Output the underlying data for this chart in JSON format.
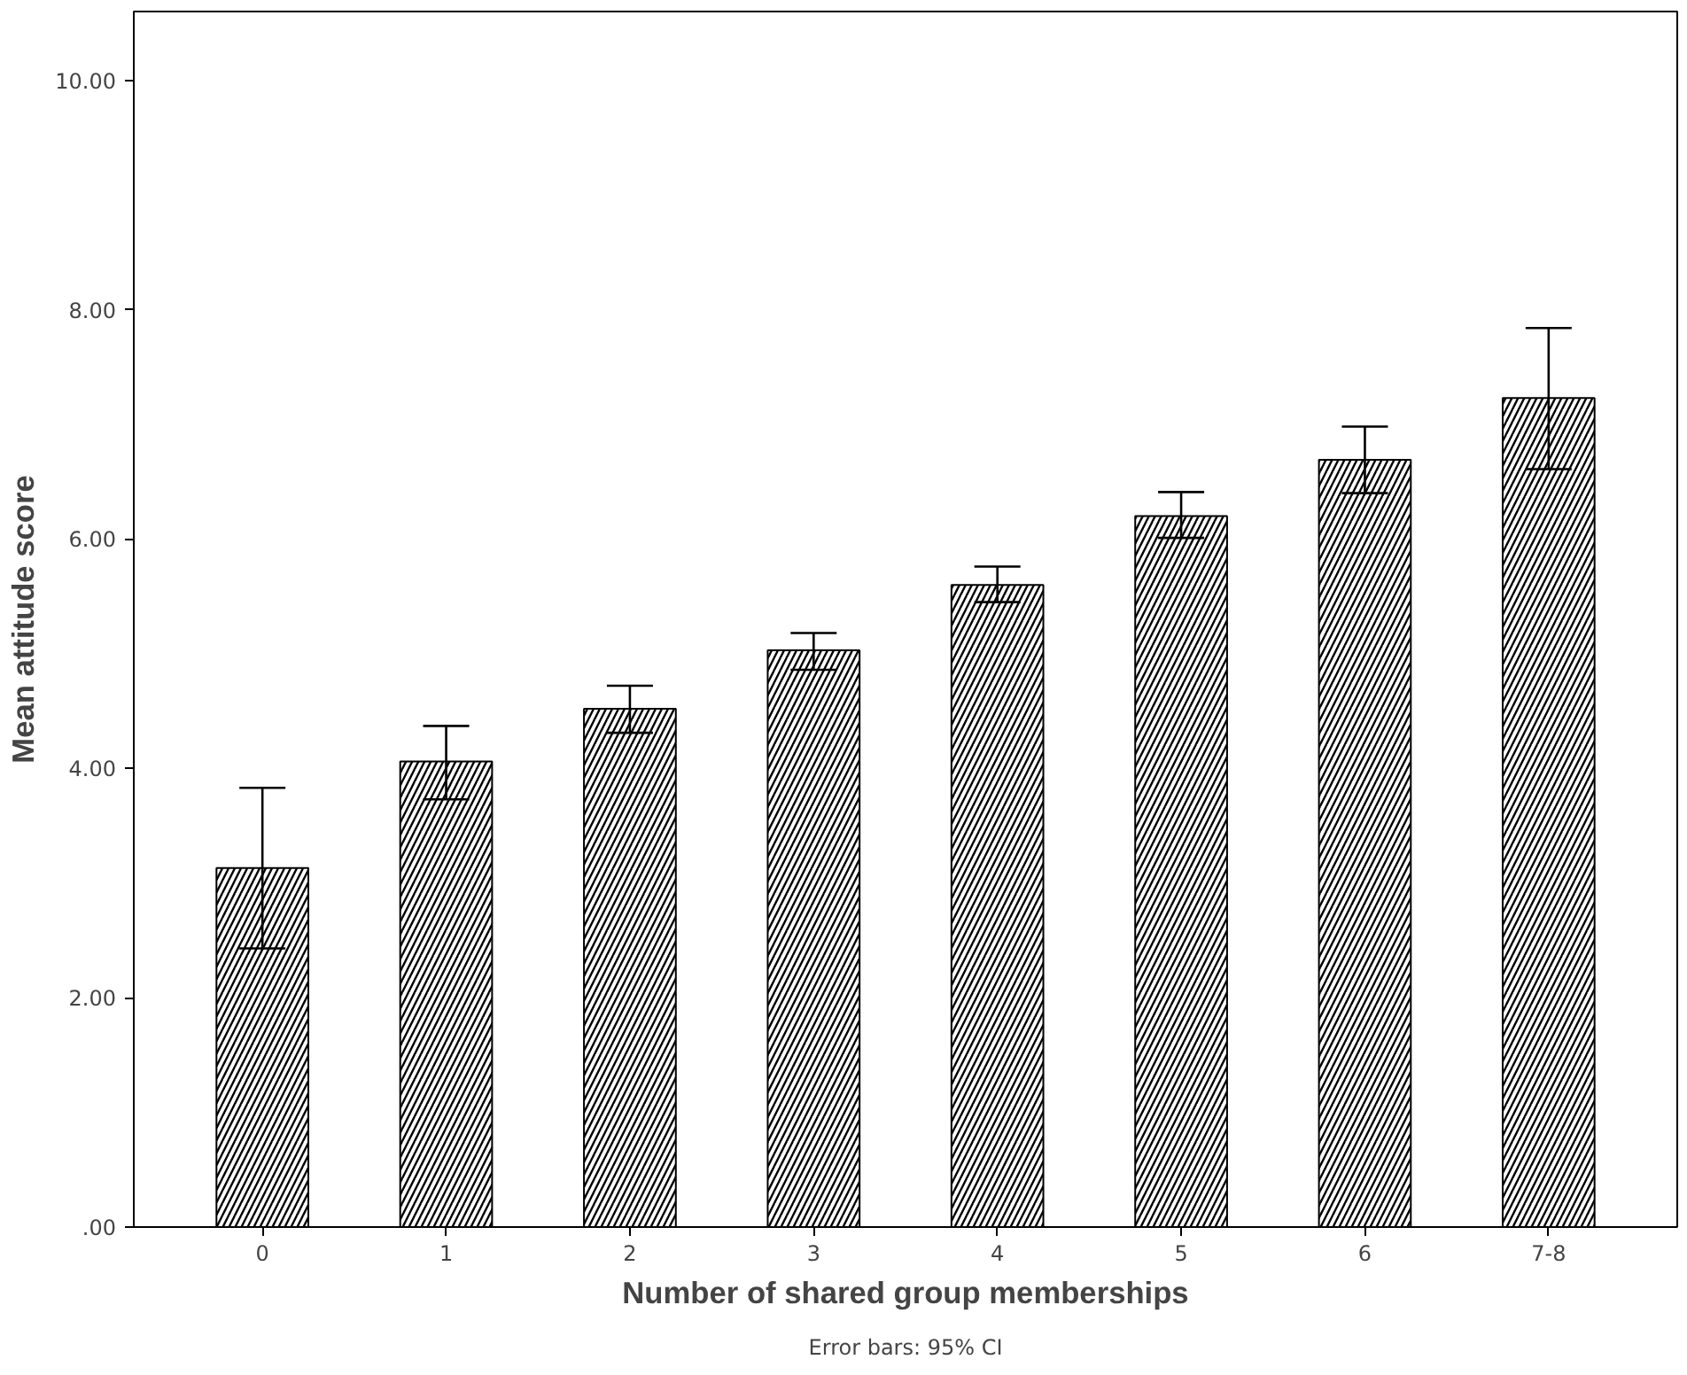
{
  "chart_data": {
    "type": "bar",
    "xlabel": "Number of shared group memberships",
    "ylabel": "Mean attitude score",
    "categories": [
      "0",
      "1",
      "2",
      "3",
      "4",
      "5",
      "6",
      "7-8"
    ],
    "values": [
      3.13,
      4.06,
      4.52,
      5.03,
      5.6,
      6.2,
      6.69,
      7.23
    ],
    "errors": [
      [
        2.43,
        3.83
      ],
      [
        3.73,
        4.37
      ],
      [
        4.31,
        4.72
      ],
      [
        4.86,
        5.18
      ],
      [
        5.45,
        5.76
      ],
      [
        6.01,
        6.41
      ],
      [
        6.4,
        6.98
      ],
      [
        6.61,
        7.84
      ]
    ],
    "color": "#000000",
    "ylim": [
      0,
      10.6
    ],
    "yticks": [
      {
        "value": 0,
        "label": ".00"
      },
      {
        "value": 2,
        "label": "2.00"
      },
      {
        "value": 4,
        "label": "4.00"
      },
      {
        "value": 6,
        "label": "6.00"
      },
      {
        "value": 8,
        "label": "8.00"
      },
      {
        "value": 10,
        "label": "10.00"
      }
    ],
    "grid": false,
    "annotations": [
      "Error bars: 95% CI"
    ]
  }
}
